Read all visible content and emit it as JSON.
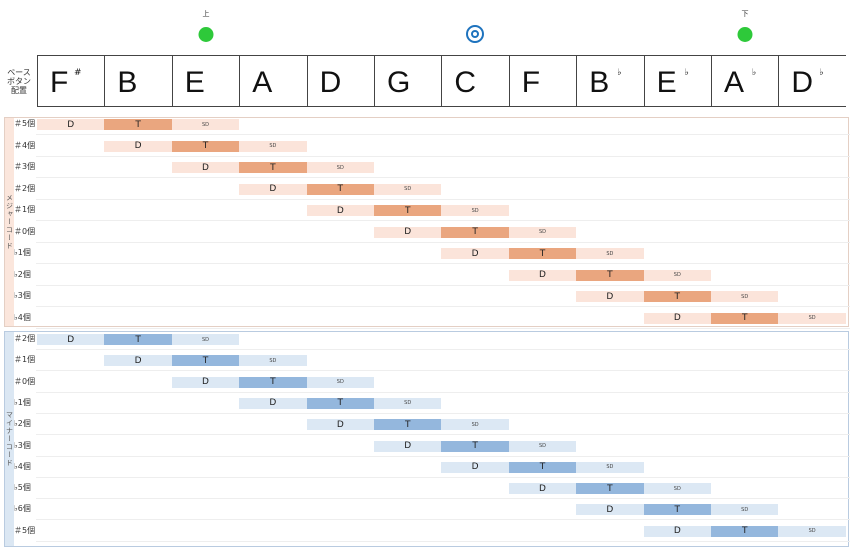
{
  "markers": {
    "up_label": "上",
    "down_label": "下"
  },
  "bass_label": "ベース\nボタン\n配置",
  "notes": [
    {
      "name": "F",
      "acc": "#"
    },
    {
      "name": "B",
      "acc": ""
    },
    {
      "name": "E",
      "acc": ""
    },
    {
      "name": "A",
      "acc": ""
    },
    {
      "name": "D",
      "acc": ""
    },
    {
      "name": "G",
      "acc": ""
    },
    {
      "name": "C",
      "acc": ""
    },
    {
      "name": "F",
      "acc": ""
    },
    {
      "name": "B",
      "acc": "♭"
    },
    {
      "name": "E",
      "acc": "♭"
    },
    {
      "name": "A",
      "acc": "♭"
    },
    {
      "name": "D",
      "acc": "♭"
    }
  ],
  "major": {
    "side_label": "メジャーコード",
    "rows": [
      "＃5個",
      "＃4個",
      "＃3個",
      "＃2個",
      "＃1個",
      "＃0個",
      "♭1個",
      "♭2個",
      "♭3個",
      "♭4個"
    ]
  },
  "minor": {
    "side_label": "マイナーコード",
    "rows": [
      "＃2個",
      "＃1個",
      "＃0個",
      "♭1個",
      "♭2個",
      "♭3個",
      "♭4個",
      "♭5個",
      "♭6個",
      "＃5個"
    ]
  },
  "functions": {
    "d": "D",
    "t": "T",
    "sd": "SD"
  },
  "colors": {
    "major_light": "#fbe4da",
    "major_dark": "#eaa67f",
    "minor_light": "#dce8f4",
    "minor_dark": "#94b7dd",
    "marker_green": "#2ec93a",
    "marker_blue": "#1e73be"
  }
}
